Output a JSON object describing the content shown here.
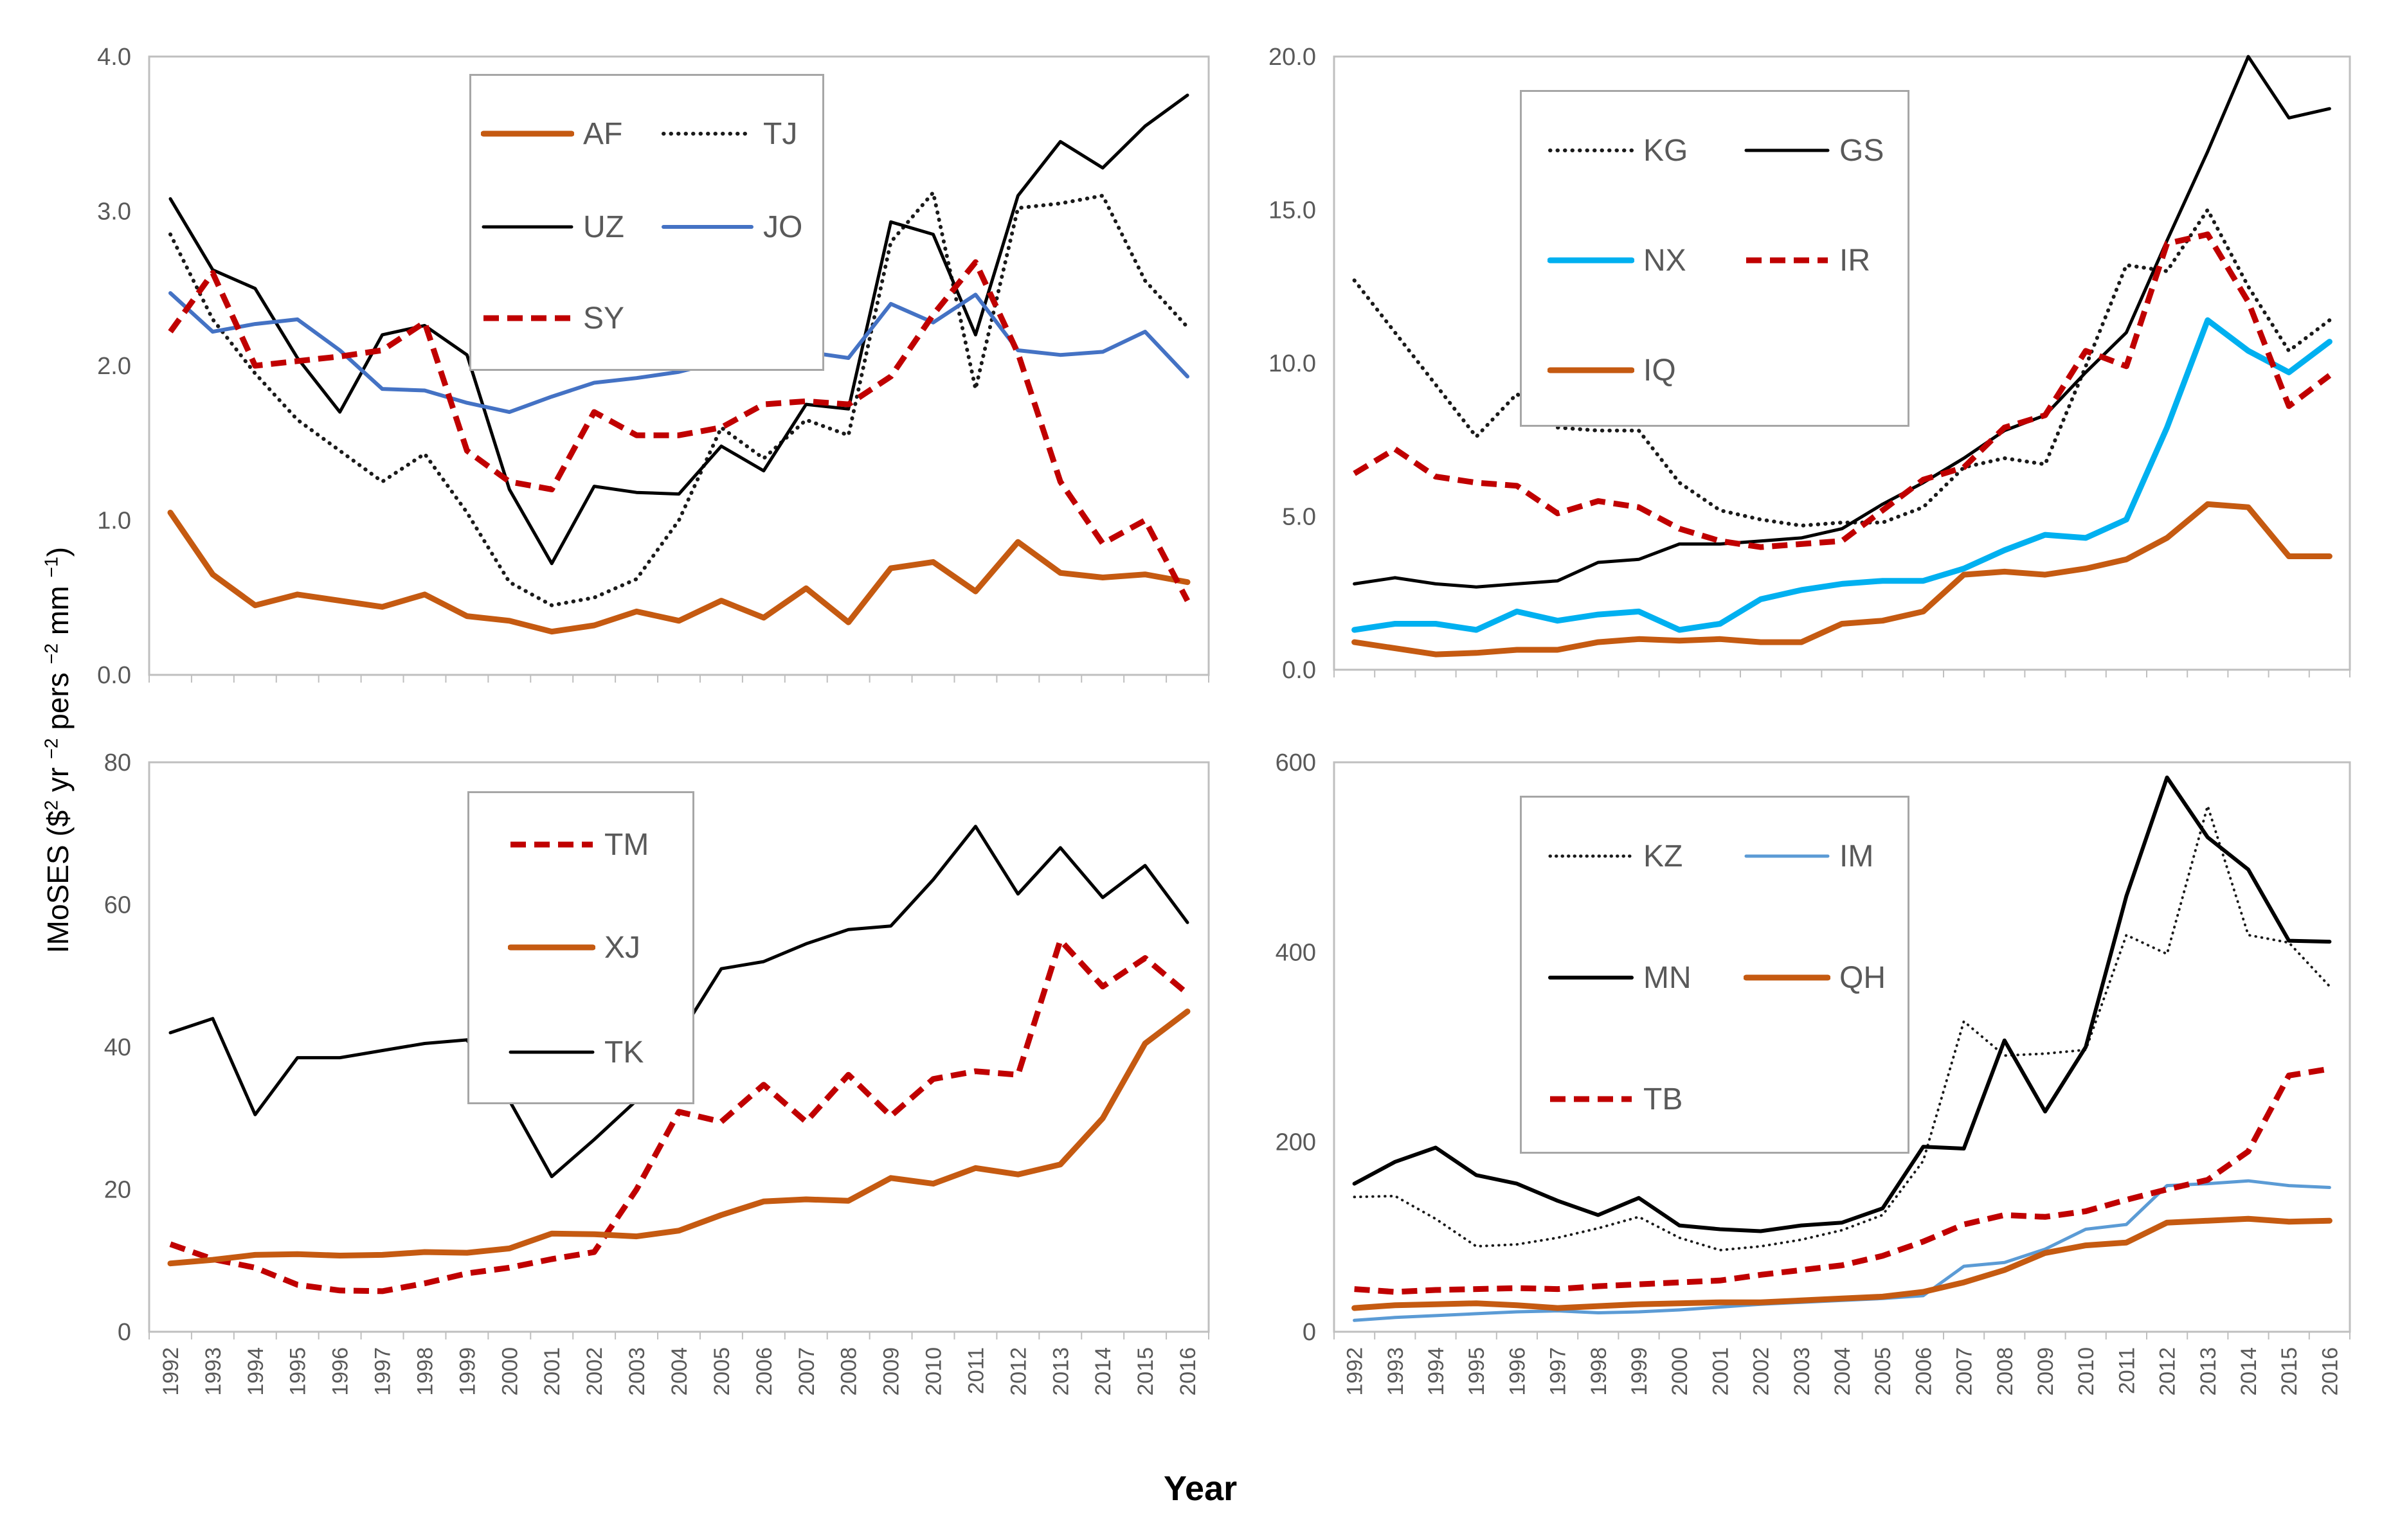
{
  "page": {
    "x_axis_title": "Year",
    "y_axis_title_segments": [
      {
        "t": "IMoSES ($"
      },
      {
        "sup": "2"
      },
      {
        "t": " yr "
      },
      {
        "sup": "−2"
      },
      {
        "t": " pers "
      },
      {
        "sup": "−2"
      },
      {
        "t": " mm "
      },
      {
        "sup": "−1"
      },
      {
        "t": ")"
      }
    ],
    "background": "#FFFFFF",
    "tick_text_color": "#595959",
    "axis_line_color": "#BFBFBF",
    "legend_border_color": "#A6A6A6"
  },
  "years": [
    1992,
    1993,
    1994,
    1995,
    1996,
    1997,
    1998,
    1999,
    2000,
    2001,
    2002,
    2003,
    2004,
    2005,
    2006,
    2007,
    2008,
    2009,
    2010,
    2011,
    2012,
    2013,
    2014,
    2015,
    2016
  ],
  "chart_data": [
    {
      "id": "top_left",
      "type": "line",
      "grid": false,
      "ylim": [
        0,
        4
      ],
      "y_ticks": [
        "0.0",
        "1.0",
        "2.0",
        "3.0",
        "4.0"
      ],
      "show_x_labels": false,
      "legend_columns": 2,
      "series": [
        {
          "name": "AF",
          "color": "#C55A11",
          "style": "solid",
          "width": 9,
          "values": [
            1.05,
            0.65,
            0.45,
            0.52,
            0.48,
            0.44,
            0.52,
            0.38,
            0.35,
            0.28,
            0.32,
            0.41,
            0.35,
            0.48,
            0.37,
            0.56,
            0.34,
            0.69,
            0.73,
            0.54,
            0.86,
            0.66,
            0.63,
            0.65,
            0.6
          ]
        },
        {
          "name": "TJ",
          "color": "#1A1A1A",
          "style": "dotted",
          "width": 6,
          "values": [
            2.85,
            2.3,
            1.95,
            1.65,
            1.45,
            1.25,
            1.43,
            1.05,
            0.6,
            0.45,
            0.5,
            0.62,
            1.0,
            1.6,
            1.4,
            1.65,
            1.55,
            2.8,
            3.12,
            1.85,
            3.02,
            3.05,
            3.1,
            2.55,
            2.25
          ]
        },
        {
          "name": "UZ",
          "color": "#000000",
          "style": "solid",
          "width": 5,
          "values": [
            3.08,
            2.62,
            2.5,
            2.05,
            1.7,
            2.2,
            2.26,
            2.07,
            1.2,
            0.72,
            1.22,
            1.18,
            1.17,
            1.48,
            1.32,
            1.75,
            1.72,
            2.93,
            2.85,
            2.2,
            3.1,
            3.45,
            3.28,
            3.55,
            3.75
          ]
        },
        {
          "name": "JO",
          "color": "#4472C4",
          "style": "solid",
          "width": 6,
          "values": [
            2.47,
            2.22,
            2.27,
            2.3,
            2.1,
            1.85,
            1.84,
            1.76,
            1.7,
            1.8,
            1.89,
            1.92,
            1.96,
            2.03,
            2.05,
            2.09,
            2.05,
            2.4,
            2.28,
            2.46,
            2.1,
            2.07,
            2.09,
            2.22,
            1.93
          ]
        },
        {
          "name": "SY",
          "color": "#C00000",
          "style": "dashed",
          "width": 9,
          "values": [
            2.22,
            2.6,
            2.0,
            2.03,
            2.06,
            2.1,
            2.28,
            1.45,
            1.25,
            1.2,
            1.7,
            1.55,
            1.55,
            1.6,
            1.75,
            1.77,
            1.75,
            1.93,
            2.33,
            2.67,
            2.08,
            1.25,
            0.85,
            1.0,
            0.48
          ]
        }
      ]
    },
    {
      "id": "top_right",
      "type": "line",
      "grid": false,
      "ylim": [
        0,
        20
      ],
      "y_ticks": [
        "0.0",
        "5.0",
        "10.0",
        "15.0",
        "20.0"
      ],
      "show_x_labels": false,
      "legend_columns": 2,
      "series": [
        {
          "name": "KG",
          "color": "#1A1A1A",
          "style": "dotted",
          "width": 6,
          "values": [
            12.7,
            11.0,
            9.3,
            7.6,
            9.0,
            7.9,
            7.8,
            7.8,
            6.1,
            5.2,
            4.9,
            4.7,
            4.8,
            4.8,
            5.3,
            6.6,
            6.9,
            6.7,
            9.9,
            13.2,
            13.0,
            15.0,
            12.5,
            10.4,
            11.4
          ]
        },
        {
          "name": "GS",
          "color": "#000000",
          "style": "solid",
          "width": 5,
          "values": [
            2.8,
            3.0,
            2.8,
            2.7,
            2.8,
            2.9,
            3.5,
            3.6,
            4.1,
            4.1,
            4.2,
            4.3,
            4.6,
            5.4,
            6.1,
            6.9,
            7.8,
            8.3,
            9.7,
            11.0,
            14.0,
            16.9,
            20.0,
            18.0,
            18.3
          ]
        },
        {
          "name": "NX",
          "color": "#00B0F0",
          "style": "solid",
          "width": 9,
          "values": [
            1.3,
            1.5,
            1.5,
            1.3,
            1.9,
            1.6,
            1.8,
            1.9,
            1.3,
            1.5,
            2.3,
            2.6,
            2.8,
            2.9,
            2.9,
            3.3,
            3.9,
            4.4,
            4.3,
            4.9,
            7.9,
            11.4,
            10.4,
            9.7,
            10.7
          ]
        },
        {
          "name": "IR",
          "color": "#C00000",
          "style": "dashed",
          "width": 9,
          "values": [
            6.4,
            7.2,
            6.3,
            6.1,
            6.0,
            5.1,
            5.5,
            5.3,
            4.6,
            4.2,
            4.0,
            4.1,
            4.2,
            5.2,
            6.2,
            6.6,
            7.9,
            8.3,
            10.4,
            9.9,
            13.9,
            14.2,
            12.0,
            8.6,
            9.6
          ]
        },
        {
          "name": "IQ",
          "color": "#C55A11",
          "style": "solid",
          "width": 9,
          "values": [
            0.9,
            0.7,
            0.5,
            0.55,
            0.65,
            0.65,
            0.9,
            1.0,
            0.95,
            1.0,
            0.9,
            0.9,
            1.5,
            1.6,
            1.9,
            3.1,
            3.2,
            3.1,
            3.3,
            3.6,
            4.3,
            5.4,
            5.3,
            3.7,
            3.7
          ]
        }
      ]
    },
    {
      "id": "bottom_left",
      "type": "line",
      "grid": false,
      "ylim": [
        0,
        80
      ],
      "y_ticks": [
        "0",
        "20",
        "40",
        "60",
        "80"
      ],
      "show_x_labels": true,
      "legend_columns": 1,
      "series": [
        {
          "name": "TM",
          "color": "#C00000",
          "style": "dashed",
          "width": 9,
          "values": [
            12.3,
            10.2,
            9.0,
            6.6,
            5.8,
            5.7,
            6.8,
            8.2,
            9.0,
            10.2,
            11.2,
            20.0,
            30.9,
            29.5,
            34.7,
            29.5,
            36.1,
            30.3,
            35.5,
            36.6,
            36.1,
            55.0,
            48.5,
            52.5,
            47.5
          ]
        },
        {
          "name": "XJ",
          "color": "#C55A11",
          "style": "solid",
          "width": 9,
          "values": [
            9.6,
            10.1,
            10.8,
            10.9,
            10.7,
            10.8,
            11.2,
            11.1,
            11.7,
            13.8,
            13.7,
            13.4,
            14.2,
            16.4,
            18.3,
            18.6,
            18.4,
            21.6,
            20.8,
            23.0,
            22.1,
            23.5,
            30.0,
            40.5,
            45.0
          ]
        },
        {
          "name": "TK",
          "color": "#000000",
          "style": "solid",
          "width": 5,
          "values": [
            42,
            44,
            30.5,
            38.5,
            38.5,
            39.5,
            40.5,
            41,
            32.5,
            21.8,
            27,
            32.5,
            41.5,
            51,
            52,
            54.5,
            56.5,
            57,
            63.5,
            71,
            61.5,
            68,
            61,
            65.5,
            57.5
          ]
        }
      ]
    },
    {
      "id": "bottom_right",
      "type": "line",
      "grid": false,
      "ylim": [
        0,
        600
      ],
      "y_ticks": [
        "0",
        "200",
        "400",
        "600"
      ],
      "show_x_labels": true,
      "legend_columns": 2,
      "series": [
        {
          "name": "KZ",
          "color": "#1A1A1A",
          "style": "dotted-fine",
          "width": 4,
          "values": [
            142,
            143,
            119,
            90,
            92,
            99,
            109,
            121,
            99,
            86,
            90,
            97,
            107,
            123,
            180,
            327,
            291,
            293,
            297,
            418,
            398,
            554,
            418,
            410,
            364
          ]
        },
        {
          "name": "IM",
          "color": "#5B9BD5",
          "style": "solid",
          "width": 5,
          "values": [
            12,
            15,
            17,
            19,
            21,
            22,
            20,
            21,
            23,
            26,
            29,
            31,
            33,
            35,
            38,
            69,
            73,
            87,
            108,
            113,
            154,
            156,
            159,
            154,
            152
          ]
        },
        {
          "name": "MN",
          "color": "#000000",
          "style": "solid",
          "width": 6,
          "values": [
            156,
            179,
            194,
            165,
            156,
            138,
            123,
            141,
            112,
            108,
            106,
            112,
            115,
            130,
            195,
            193,
            307,
            232,
            300,
            459,
            584,
            521,
            487,
            412,
            411
          ]
        },
        {
          "name": "QH",
          "color": "#C55A11",
          "style": "solid",
          "width": 9,
          "values": [
            25,
            28,
            29,
            30,
            28,
            25,
            27,
            29,
            30,
            31,
            31,
            33,
            35,
            37,
            42,
            52,
            65,
            83,
            91,
            94,
            115,
            117,
            119,
            116,
            117
          ]
        },
        {
          "name": "TB",
          "color": "#C00000",
          "style": "dashed",
          "width": 9,
          "values": [
            45,
            42,
            44,
            45,
            46,
            45,
            48,
            50,
            52,
            54,
            60,
            65,
            70,
            80,
            95,
            113,
            123,
            121,
            127,
            139,
            150,
            160,
            190,
            270,
            277
          ]
        }
      ]
    }
  ]
}
